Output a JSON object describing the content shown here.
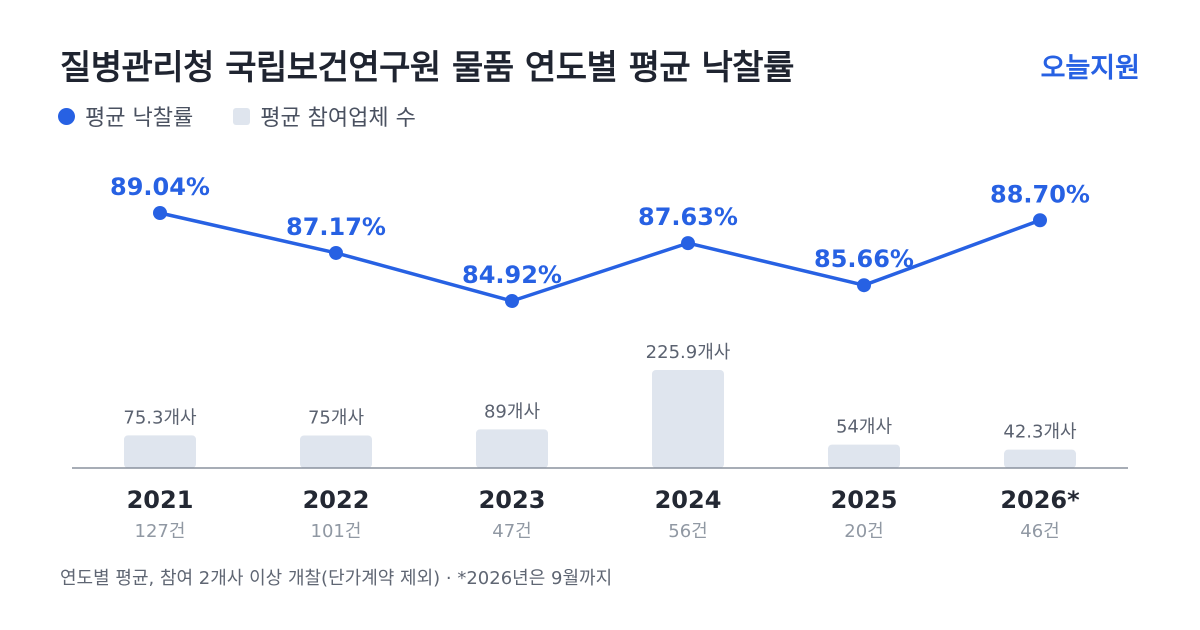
{
  "title": "질병관리청 국립보건연구원 물품 연도별 평균 낙찰률",
  "brand": "오늘지원",
  "legend": {
    "rate_label": "평균 낙찰률",
    "bidders_label": "평균 참여업체 수"
  },
  "footnote": "연도별 평균, 참여 2개사 이상 개찰(단가계약 제외) · *2026년은 9월까지",
  "colors": {
    "accent": "#2761e3",
    "bar": "#dfe5ee",
    "axis": "#8a929e",
    "text_dark": "#232833",
    "text_muted": "#9098a3",
    "bar_label": "#5b6270"
  },
  "chart_data": {
    "type": "line",
    "categories": [
      "2021",
      "2022",
      "2023",
      "2024",
      "2025",
      "2026*"
    ],
    "counts": [
      "127건",
      "101건",
      "47건",
      "56건",
      "20건",
      "46건"
    ],
    "series": [
      {
        "name": "평균 낙찰률",
        "type": "line",
        "values": [
          89.04,
          87.17,
          84.92,
          87.63,
          85.66,
          88.7
        ],
        "labels": [
          "89.04%",
          "87.17%",
          "84.92%",
          "87.63%",
          "85.66%",
          "88.70%"
        ]
      },
      {
        "name": "평균 참여업체 수",
        "type": "bar",
        "values": [
          75.3,
          75,
          89,
          225.9,
          54,
          42.3
        ],
        "labels": [
          "75.3개사",
          "75개사",
          "89개사",
          "225.9개사",
          "54개사",
          "42.3개사"
        ]
      }
    ],
    "grid": false,
    "legend_position": "top-left"
  }
}
